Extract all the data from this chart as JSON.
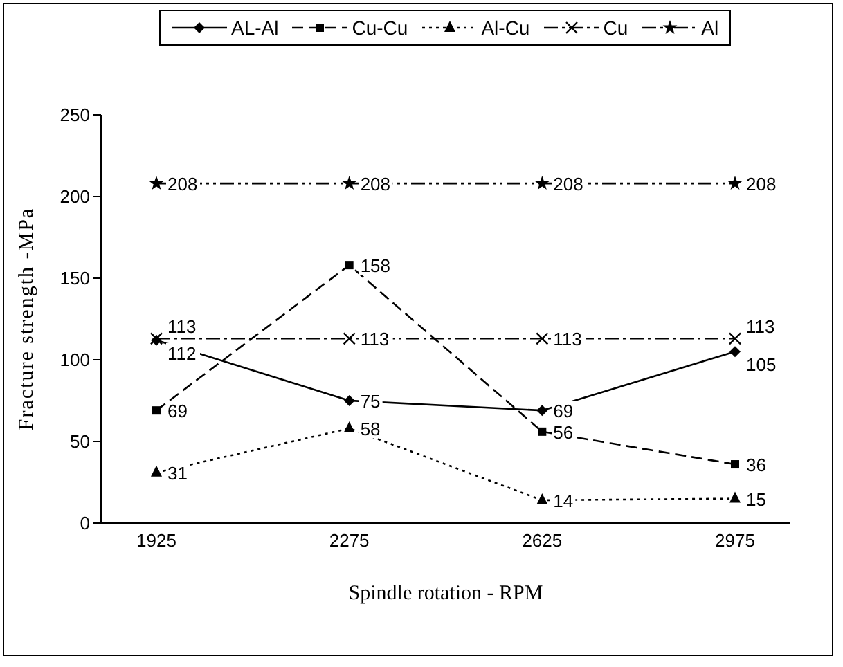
{
  "chart_data": {
    "type": "line",
    "xlabel": "Spindle rotation - RPM",
    "ylabel": "Fracture strength -MPa",
    "categories": [
      "1925",
      "2275",
      "2625",
      "2975"
    ],
    "series": [
      {
        "name": "AL-Al",
        "color": "#000000",
        "values": [
          112,
          75,
          69,
          105
        ],
        "marker": "diamond",
        "line_style": "solid"
      },
      {
        "name": "Cu-Cu",
        "color": "#000000",
        "values": [
          69,
          158,
          56,
          36
        ],
        "marker": "square",
        "line_style": "dashed"
      },
      {
        "name": "Al-Cu",
        "color": "#000000",
        "values": [
          31,
          58,
          14,
          15
        ],
        "marker": "triangle",
        "line_style": "dotted"
      },
      {
        "name": "Cu",
        "color": "#000000",
        "values": [
          113,
          113,
          113,
          113
        ],
        "marker": "cross",
        "line_style": "dashdot"
      },
      {
        "name": "Al",
        "color": "#000000",
        "values": [
          208,
          208,
          208,
          208
        ],
        "marker": "star",
        "line_style": "dashdotdot"
      }
    ],
    "ylim": [
      0,
      250
    ],
    "yticks": [
      0,
      50,
      100,
      150,
      200,
      250
    ],
    "grid": false,
    "legend": "top",
    "data_labels": true
  }
}
